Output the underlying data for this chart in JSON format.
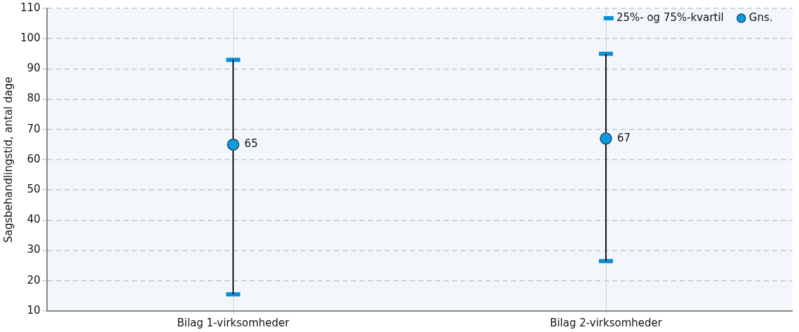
{
  "chart_data": {
    "type": "scatter",
    "ylabel": "Sagsbehandlingstid, antal dage",
    "categories": [
      "Bilag 1-virksomheder",
      "Bilag 2-virksomheder"
    ],
    "ylim": [
      10,
      110
    ],
    "yticks": [
      10,
      20,
      30,
      40,
      50,
      60,
      70,
      80,
      90,
      100,
      110
    ],
    "grid": true,
    "legend": "top right",
    "series": [
      {
        "name": "25%- og 75%-kvartil",
        "color": "#0a8fd6",
        "x": [
          "Bilag 1-virksomheder",
          "Bilag 1-virksomheder",
          "Bilag 2-virksomheder",
          "Bilag 2-virksomheder"
        ],
        "values": [
          15.5,
          93,
          26.5,
          95
        ]
      },
      {
        "name": "Gns.",
        "marker": "circle",
        "color": "#0a9be0",
        "values": [
          65,
          67
        ],
        "errors": [
          [
            15.5,
            93
          ],
          [
            26.5,
            95
          ]
        ],
        "data_labels": true
      }
    ]
  }
}
